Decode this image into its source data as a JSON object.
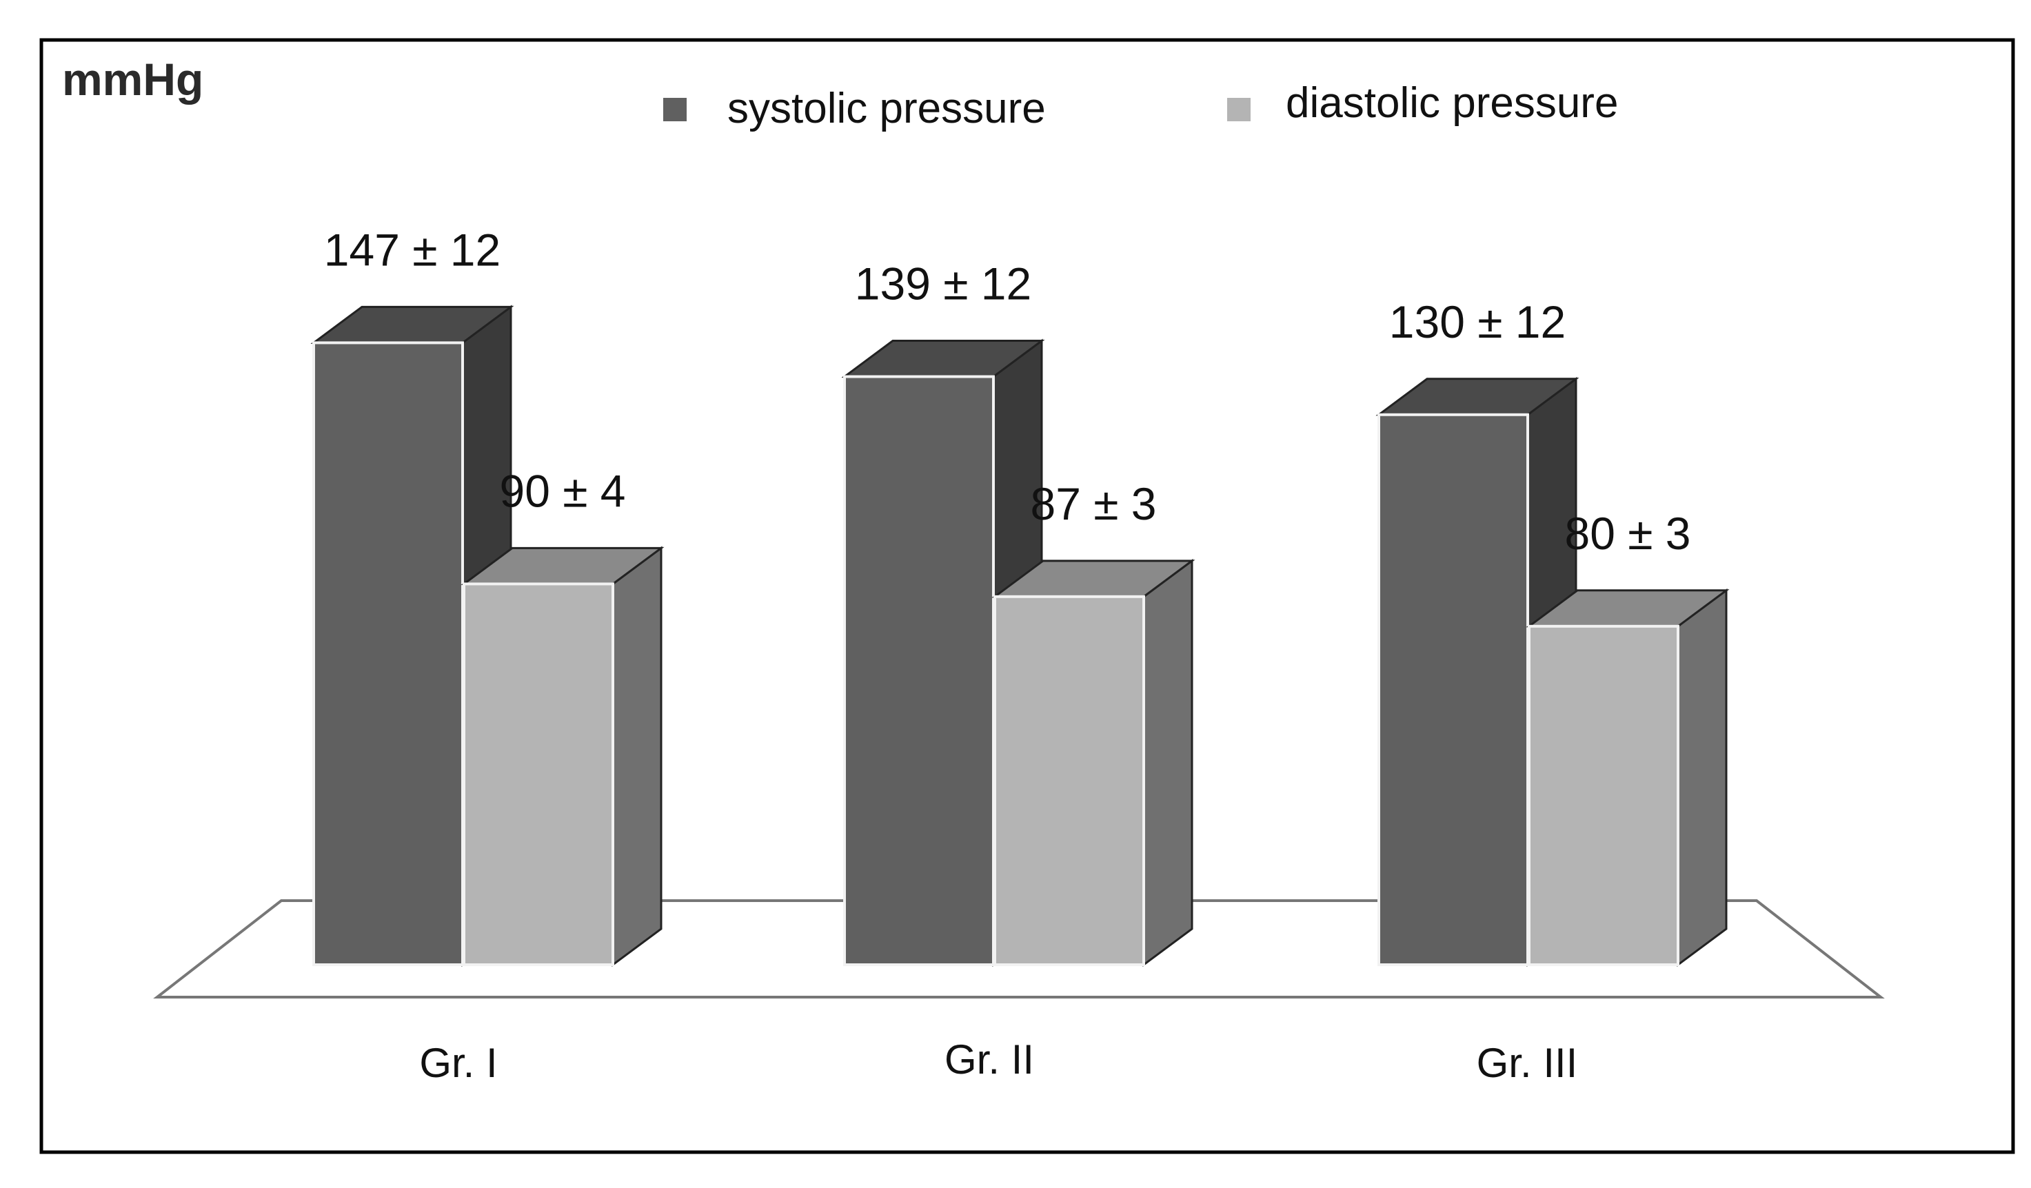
{
  "chart_data": {
    "type": "bar",
    "style": "3d",
    "title": "",
    "xlabel": "",
    "ylabel": "mmHg",
    "categories": [
      "Gr. I",
      "Gr. II",
      "Gr. III"
    ],
    "series": [
      {
        "name": "systolic pressure",
        "values": [
          147,
          139,
          130
        ],
        "errors": [
          12,
          12,
          12
        ],
        "labels": [
          "147 ± 12",
          "139 ± 12",
          "130 ± 12"
        ],
        "color": "#606060",
        "side_color": "#3a3a3a",
        "top_color": "#4a4a4a"
      },
      {
        "name": "diastolic pressure",
        "values": [
          90,
          87,
          80
        ],
        "errors": [
          4,
          3,
          3
        ],
        "labels": [
          "90 ± 4",
          "87 ± 3",
          "80 ± 3"
        ],
        "color": "#b4b4b4",
        "side_color": "#707070",
        "top_color": "#8a8a8a"
      }
    ],
    "ylim": [
      0,
      200
    ],
    "grid": false,
    "legend": "top"
  }
}
